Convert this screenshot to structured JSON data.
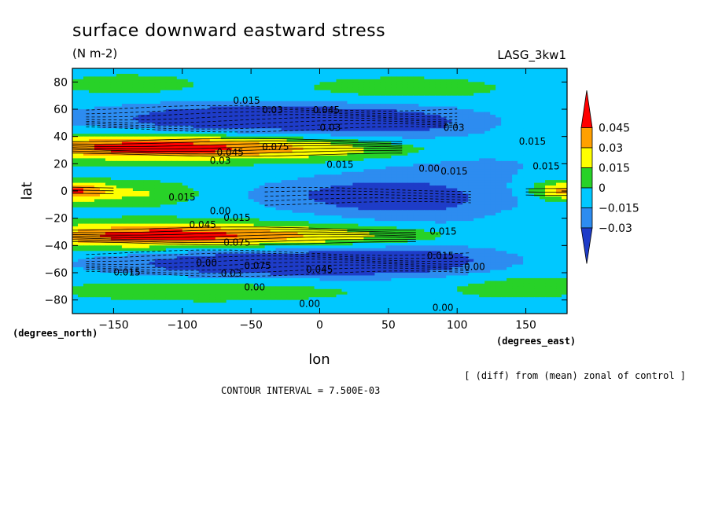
{
  "chart_data": {
    "type": "heatmap",
    "title": "surface downward eastward stress",
    "units": "(N m-2)",
    "dataset_label": "LASG_3kw1",
    "xlabel": "lon",
    "ylabel": "lat",
    "x_units": "(degrees_east)",
    "y_units": "(degrees_north)",
    "xlim": [
      -180,
      180
    ],
    "ylim": [
      -90,
      90
    ],
    "x_ticks": [
      -150,
      -100,
      -50,
      0,
      50,
      100,
      150
    ],
    "y_ticks": [
      80,
      60,
      40,
      20,
      0,
      -20,
      -40,
      -60,
      -80
    ],
    "colorbar": {
      "levels": [
        -0.045,
        -0.03,
        -0.015,
        0,
        0.015,
        0.03,
        0.045,
        0.06
      ],
      "tick_labels": [
        "0.045",
        "0.03",
        "0.015",
        "0",
        "−0.015",
        "−0.03"
      ],
      "colors": [
        "#1e3cc8",
        "#2d8cf0",
        "#00c8ff",
        "#28d228",
        "#ffff00",
        "#ffa000",
        "#ff0000"
      ],
      "extend": "both"
    },
    "contour_interval": "CONTOUR INTERVAL = 7.500E-03",
    "note": "[ (diff) from (mean) zonal of control ]",
    "zonal_features": [
      {
        "lat": 32,
        "lon_center": -115,
        "value": 0.055
      },
      {
        "lat": -32,
        "lon_center": -110,
        "value": 0.055
      },
      {
        "lat": 55,
        "lon_center": -30,
        "value": -0.04
      },
      {
        "lat": -55,
        "lon_center": -20,
        "value": -0.04
      },
      {
        "lat": 0,
        "lon_center": -170,
        "value": 0.04
      },
      {
        "lat": 0,
        "lon_center": 175,
        "value": 0.035
      },
      {
        "lat": -5,
        "lon_center": 30,
        "value": -0.03
      }
    ],
    "contour_labels": [
      {
        "text": "0.015",
        "lon": -63,
        "lat": 64
      },
      {
        "text": "0.03",
        "lon": -42,
        "lat": 57
      },
      {
        "text": "0.045",
        "lon": -5,
        "lat": 57
      },
      {
        "text": "0.03",
        "lon": 0,
        "lat": 44
      },
      {
        "text": "0.03",
        "lon": 90,
        "lat": 44
      },
      {
        "text": "0.015",
        "lon": 145,
        "lat": 34
      },
      {
        "text": "0.075",
        "lon": -42,
        "lat": 30
      },
      {
        "text": "0.045",
        "lon": -75,
        "lat": 26
      },
      {
        "text": "0.03",
        "lon": -80,
        "lat": 20
      },
      {
        "text": "0.015",
        "lon": 5,
        "lat": 17
      },
      {
        "text": "0.00",
        "lon": 72,
        "lat": 14
      },
      {
        "text": "0.015",
        "lon": 88,
        "lat": 12
      },
      {
        "text": "0.015",
        "lon": 155,
        "lat": 16
      },
      {
        "text": "0.015",
        "lon": -110,
        "lat": -7
      },
      {
        "text": "0.00",
        "lon": -80,
        "lat": -17
      },
      {
        "text": "0.015",
        "lon": -70,
        "lat": -22
      },
      {
        "text": "0.045",
        "lon": -95,
        "lat": -27
      },
      {
        "text": "0.075",
        "lon": -70,
        "lat": -40
      },
      {
        "text": "0.015",
        "lon": 80,
        "lat": -32
      },
      {
        "text": "0.015",
        "lon": 78,
        "lat": -50
      },
      {
        "text": "0.00",
        "lon": -90,
        "lat": -55
      },
      {
        "text": "0.075",
        "lon": -55,
        "lat": -57
      },
      {
        "text": "0.015",
        "lon": -150,
        "lat": -62
      },
      {
        "text": "0.03",
        "lon": -72,
        "lat": -63
      },
      {
        "text": "0.045",
        "lon": -10,
        "lat": -60
      },
      {
        "text": "0.00",
        "lon": 105,
        "lat": -58
      },
      {
        "text": "0.00",
        "lon": -55,
        "lat": -73
      },
      {
        "text": "0.00",
        "lon": -15,
        "lat": -85
      },
      {
        "text": "0.00",
        "lon": 82,
        "lat": -88
      }
    ]
  }
}
